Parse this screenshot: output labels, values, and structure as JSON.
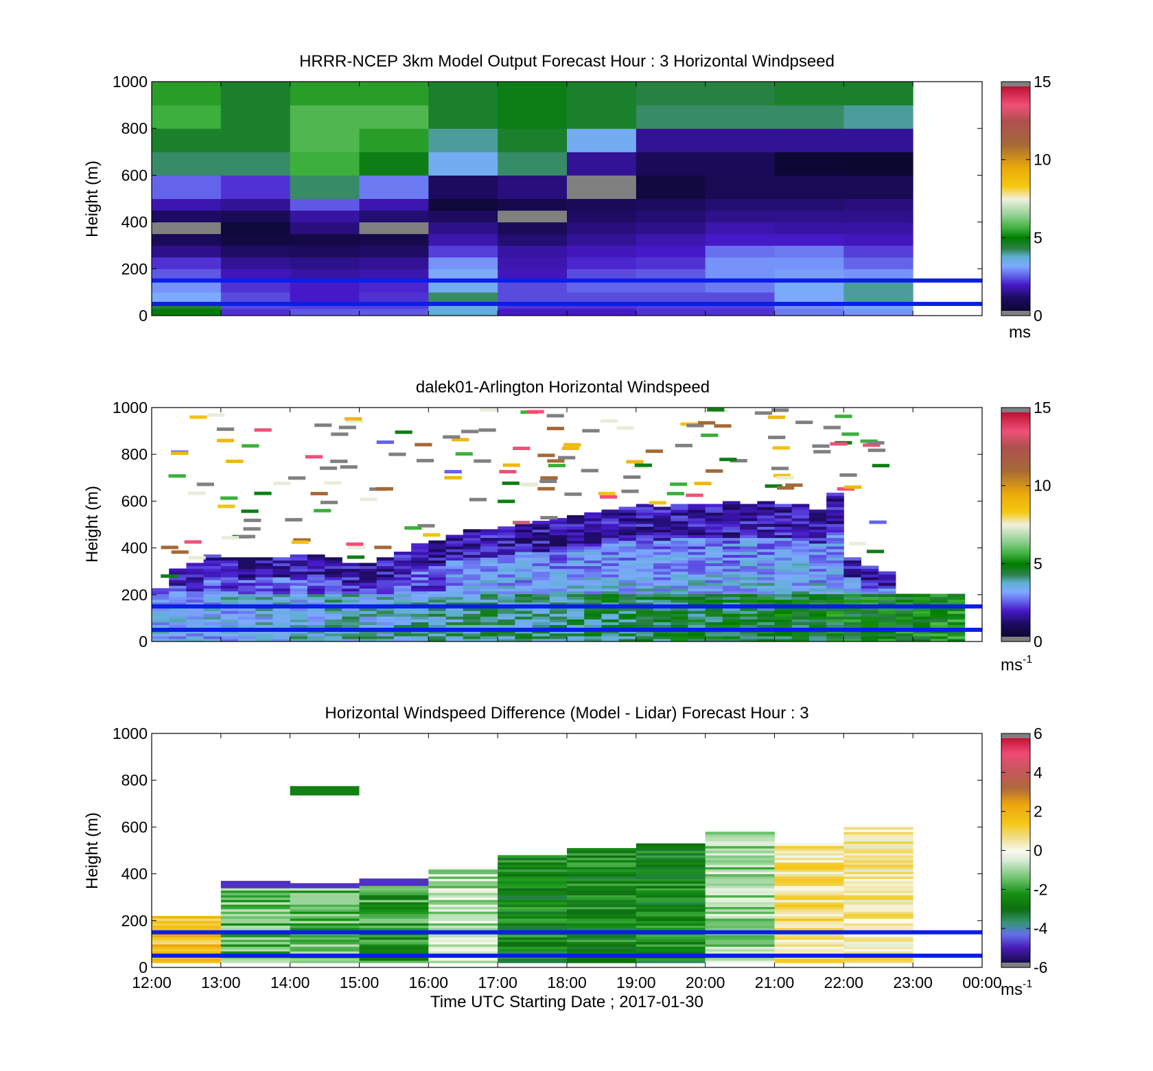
{
  "chart_data": [
    {
      "type": "heatmap",
      "title": "HRRR-NCEP 3km Model Output   Forecast Hour : 3 Horizontal Windpseed",
      "xlabel": "",
      "ylabel": "Height (m)",
      "ylim": [
        0,
        1000
      ],
      "yticks": [
        "0",
        "200",
        "400",
        "600",
        "800",
        "1000"
      ],
      "x_range_hours": [
        12,
        24
      ],
      "colorbar": {
        "min": 0,
        "max": 15,
        "ticks": [
          "0",
          "5",
          "10",
          "15"
        ],
        "unit": "ms"
      },
      "reference_lines_m": [
        150,
        50
      ],
      "reference_line_color": "#0a1ee8",
      "columns_start_hour": [
        12,
        13,
        14,
        15,
        16,
        17,
        18,
        19,
        20,
        21,
        22
      ],
      "column_width_hours": 1,
      "level_edges_m": [
        0,
        30,
        60,
        100,
        150,
        200,
        250,
        300,
        350,
        400,
        450,
        500,
        600,
        700,
        800,
        900,
        1000
      ],
      "values_ms": [
        [
          5.0,
          2.2,
          2.5,
          2.5,
          3.8,
          2.0,
          2.0,
          2.2,
          2.2,
          2.8,
          3.0
        ],
        [
          4.5,
          2.4,
          2.3,
          2.3,
          3.6,
          2.2,
          2.2,
          2.3,
          2.3,
          3.0,
          3.4
        ],
        [
          3.2,
          2.4,
          2.0,
          2.2,
          4.2,
          2.4,
          2.4,
          2.4,
          2.4,
          3.2,
          4.0
        ],
        [
          3.0,
          2.2,
          2.0,
          2.1,
          3.4,
          2.4,
          2.6,
          2.6,
          2.8,
          3.3,
          4.0
        ],
        [
          2.5,
          1.9,
          1.7,
          1.8,
          3.2,
          1.9,
          2.4,
          2.5,
          3.0,
          3.1,
          3.0
        ],
        [
          2.2,
          1.6,
          1.5,
          1.6,
          3.0,
          1.8,
          2.1,
          2.2,
          3.0,
          3.0,
          2.6
        ],
        [
          1.5,
          1.2,
          1.1,
          1.2,
          2.3,
          1.7,
          1.9,
          2.0,
          2.7,
          2.8,
          2.3
        ],
        [
          1.0,
          0.6,
          0.7,
          0.8,
          1.8,
          1.3,
          1.6,
          1.8,
          2.0,
          2.0,
          1.9
        ],
        [
          -1.0,
          0.5,
          1.4,
          -1.0,
          1.5,
          1.0,
          1.4,
          1.5,
          1.8,
          1.7,
          1.7
        ],
        [
          1.2,
          1.0,
          1.7,
          1.3,
          1.1,
          -1.0,
          1.2,
          1.3,
          1.5,
          1.5,
          1.5
        ],
        [
          1.8,
          1.6,
          2.5,
          1.8,
          0.5,
          0.8,
          1.0,
          1.1,
          1.3,
          1.3,
          1.4
        ],
        [
          2.6,
          2.2,
          4.2,
          2.8,
          1.1,
          1.4,
          -1.0,
          0.6,
          0.9,
          0.9,
          0.9
        ],
        [
          4.2,
          4.2,
          5.6,
          4.8,
          3.4,
          4.2,
          1.6,
          1.0,
          1.0,
          0.4,
          0.3
        ],
        [
          4.6,
          4.6,
          5.8,
          5.4,
          4.0,
          4.6,
          3.4,
          1.6,
          1.6,
          1.6,
          1.6
        ],
        [
          5.6,
          4.6,
          5.8,
          5.8,
          4.6,
          4.8,
          4.6,
          4.2,
          4.2,
          4.2,
          4.0
        ],
        [
          5.4,
          4.6,
          5.4,
          5.4,
          4.6,
          4.8,
          4.6,
          4.4,
          4.4,
          4.6,
          4.6
        ]
      ]
    },
    {
      "type": "heatmap",
      "title": "dalek01-Arlington  Horizontal Windspeed",
      "xlabel": "",
      "ylabel": "Height (m)",
      "ylim": [
        0,
        1000
      ],
      "yticks": [
        "0",
        "200",
        "400",
        "600",
        "800",
        "1000"
      ],
      "x_range_hours": [
        12,
        24
      ],
      "colorbar": {
        "min": 0,
        "max": 15,
        "ticks": [
          "0",
          "5",
          "10",
          "15"
        ],
        "unit": "ms",
        "unit_exponent": "-1"
      },
      "reference_lines_m": [
        150,
        50
      ],
      "reference_line_color": "#0a1ee8",
      "time_bin_hours": 0.25,
      "data_start_hour": 12,
      "data_end_hour": 23.75,
      "column_top_m": [
        220,
        310,
        330,
        370,
        360,
        350,
        360,
        360,
        370,
        370,
        360,
        330,
        330,
        360,
        380,
        420,
        430,
        450,
        470,
        470,
        490,
        500,
        510,
        520,
        530,
        550,
        560,
        570,
        580,
        570,
        580,
        580,
        580,
        590,
        580,
        590,
        580,
        580,
        560,
        630,
        360,
        320,
        290,
        200,
        200,
        200,
        200,
        200
      ],
      "columns_note": "profiles below column_top_m: low-level green/light-blue jet, upper part purple/dark",
      "scattered_returns_note": "sparse grey, orange, yellow, red and green returns between 350 m and 1000 m"
    },
    {
      "type": "heatmap",
      "title": "Horizontal Windspeed Difference (Model - Lidar) Forecast Hour : 3",
      "xlabel": "Time UTC  Starting Date ; 2017-01-30",
      "ylabel": "Height (m)",
      "ylim": [
        0,
        1000
      ],
      "yticks": [
        "0",
        "200",
        "400",
        "600",
        "800",
        "1000"
      ],
      "xticks": [
        "12:00",
        "13:00",
        "14:00",
        "15:00",
        "16:00",
        "17:00",
        "18:00",
        "19:00",
        "20:00",
        "21:00",
        "22:00",
        "23:00",
        "00:00"
      ],
      "x_range_hours": [
        12,
        24
      ],
      "colorbar": {
        "min": -6,
        "max": 6,
        "ticks": [
          "-6",
          "-4",
          "-2",
          "0",
          "2",
          "4",
          "6"
        ],
        "unit": "ms",
        "unit_exponent": "-1"
      },
      "reference_lines_m": [
        150,
        50
      ],
      "reference_line_color": "#0a1ee8",
      "columns_start_hour": [
        12,
        13,
        14,
        15,
        16,
        17,
        18,
        19,
        20,
        21,
        22
      ],
      "column_width_hours": 1,
      "column_top_m": [
        215,
        365,
        360,
        375,
        425,
        480,
        505,
        530,
        575,
        530,
        600
      ],
      "mean_difference_ms": [
        1.5,
        -1.5,
        -1.5,
        -2.0,
        -0.8,
        -2.6,
        -2.6,
        -2.6,
        -1.0,
        0.6,
        0.4
      ],
      "isolated_blocks": [
        {
          "hour_start": 14,
          "hour_end": 15,
          "y_range_m": [
            735,
            775
          ],
          "value_ms": -2.6
        }
      ]
    }
  ]
}
